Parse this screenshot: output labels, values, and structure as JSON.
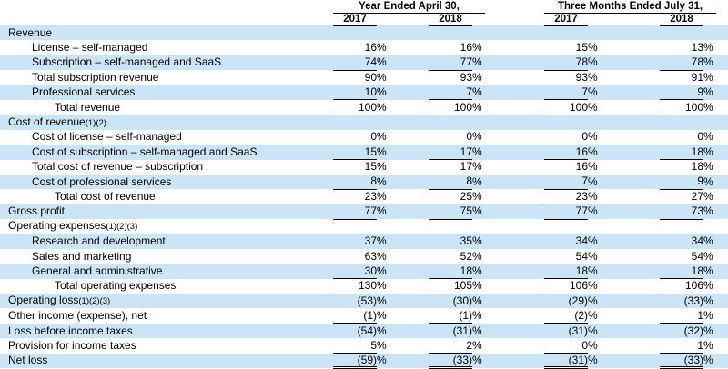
{
  "colors": {
    "stripe": "#cbe5f7",
    "rule": "#000000",
    "text": "#000000",
    "background": "#ffffff"
  },
  "table": {
    "percent_sign": "%",
    "col_groups": [
      {
        "label": "Year Ended April 30,",
        "years": [
          "2017",
          "2018"
        ]
      },
      {
        "label": "Three Months Ended July 31,",
        "years": [
          "2017",
          "2018"
        ]
      }
    ],
    "rows": [
      {
        "label": "Revenue",
        "indent": 0,
        "values": null
      },
      {
        "label": "License – self-managed",
        "indent": 1,
        "values": [
          "16",
          "16",
          "15",
          "13"
        ]
      },
      {
        "label": "Subscription – self-managed and SaaS",
        "indent": 1,
        "values": [
          "74",
          "77",
          "78",
          "78"
        ],
        "rule": "single"
      },
      {
        "label": "Total subscription revenue",
        "indent": 1,
        "values": [
          "90",
          "93",
          "93",
          "91"
        ]
      },
      {
        "label": "Professional services",
        "indent": 1,
        "values": [
          "10",
          "7",
          "7",
          "9"
        ],
        "rule": "single"
      },
      {
        "label": "Total revenue",
        "indent": 2,
        "values": [
          "100",
          "100",
          "100",
          "100"
        ],
        "rule": "single"
      },
      {
        "label": "Cost of revenue",
        "footnote": "(1)(2)",
        "indent": 0,
        "values": null
      },
      {
        "label": "Cost of license – self-managed",
        "indent": 1,
        "values": [
          "0",
          "0",
          "0",
          "0"
        ]
      },
      {
        "label": "Cost of subscription – self-managed and SaaS",
        "indent": 1,
        "values": [
          "15",
          "17",
          "16",
          "18"
        ],
        "rule": "single"
      },
      {
        "label": "Total cost of revenue – subscription",
        "indent": 1,
        "values": [
          "15",
          "17",
          "16",
          "18"
        ]
      },
      {
        "label": "Cost of professional services",
        "indent": 1,
        "values": [
          "8",
          "8",
          "7",
          "9"
        ],
        "rule": "single"
      },
      {
        "label": "Total cost of revenue",
        "indent": 2,
        "values": [
          "23",
          "25",
          "23",
          "27"
        ],
        "rule": "single"
      },
      {
        "label": "Gross profit",
        "indent": 0,
        "values": [
          "77",
          "75",
          "77",
          "73"
        ],
        "rule": "single"
      },
      {
        "label": "Operating expenses",
        "footnote": "(1)(2)(3)",
        "indent": 0,
        "values": null
      },
      {
        "label": "Research and development",
        "indent": 1,
        "values": [
          "37",
          "35",
          "34",
          "34"
        ]
      },
      {
        "label": "Sales and marketing",
        "indent": 1,
        "values": [
          "63",
          "52",
          "54",
          "54"
        ]
      },
      {
        "label": "General and administrative",
        "indent": 1,
        "values": [
          "30",
          "18",
          "18",
          "18"
        ],
        "rule": "single"
      },
      {
        "label": "Total operating expenses",
        "indent": 2,
        "values": [
          "130",
          "105",
          "106",
          "106"
        ],
        "rule": "single"
      },
      {
        "label": "Operating loss",
        "footnote": "(1)(2)(3)",
        "indent": 0,
        "values": [
          "(53)",
          "(30)",
          "(29)",
          "(33)"
        ]
      },
      {
        "label": "Other income (expense), net",
        "indent": 0,
        "values": [
          "(1)",
          "(1)",
          "(2)",
          "1"
        ],
        "rule": "single"
      },
      {
        "label": "Loss before income taxes",
        "indent": 0,
        "values": [
          "(54)",
          "(31)",
          "(31)",
          "(32)"
        ]
      },
      {
        "label": "Provision for income taxes",
        "indent": 0,
        "values": [
          "5",
          "2",
          "0",
          "1"
        ],
        "rule": "single"
      },
      {
        "label": "Net loss",
        "indent": 0,
        "values": [
          "(59)",
          "(33)",
          "(31)",
          "(33)"
        ],
        "rule": "double"
      }
    ]
  }
}
